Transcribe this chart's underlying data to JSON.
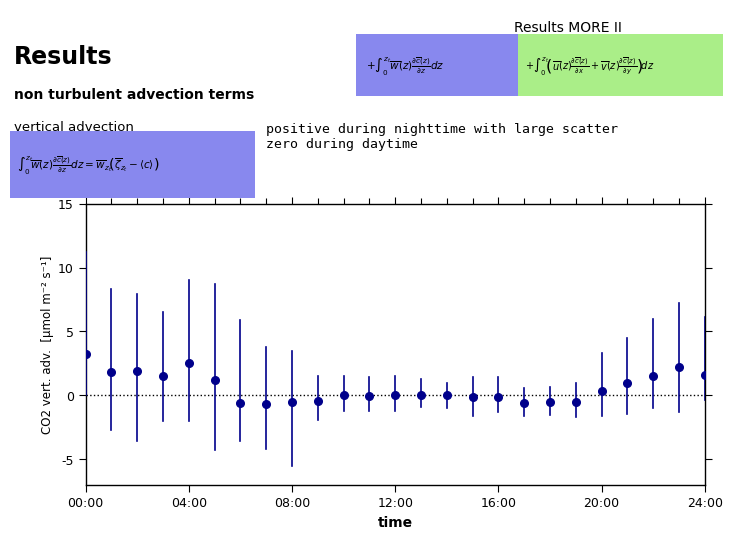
{
  "title_slide": "Results MORE II",
  "title_main": "Results",
  "subtitle": "non turbulent advection terms",
  "subtitle2": "vertical advection",
  "annotation": "positive during nighttime with large scatter\nzero during daytime",
  "xlabel": "time",
  "ylabel": "CO2 vert. adv.  [μmol m⁻² s⁻¹]",
  "ylim": [
    -7,
    15
  ],
  "yticks": [
    -5,
    0,
    5,
    10,
    15
  ],
  "x_hours": [
    0,
    1,
    2,
    3,
    4,
    5,
    6,
    7,
    8,
    9,
    10,
    11,
    12,
    13,
    14,
    15,
    16,
    17,
    18,
    19,
    20,
    21,
    22,
    23,
    24
  ],
  "y_values": [
    3.2,
    1.8,
    1.9,
    1.5,
    2.5,
    1.2,
    -0.6,
    -0.7,
    -0.55,
    -0.45,
    0.0,
    -0.05,
    0.0,
    0.05,
    0.0,
    -0.1,
    -0.1,
    -0.6,
    -0.55,
    -0.5,
    0.35,
    1.0,
    1.5,
    2.2,
    1.6
  ],
  "y_err_low": [
    3.2,
    4.5,
    5.5,
    3.5,
    4.5,
    5.5,
    3.0,
    3.5,
    5.0,
    1.5,
    1.2,
    1.2,
    1.2,
    1.0,
    1.0,
    1.5,
    1.2,
    1.0,
    1.0,
    1.2,
    2.0,
    2.5,
    2.5,
    3.5,
    2.0
  ],
  "y_err_high": [
    8.0,
    6.5,
    6.0,
    5.0,
    6.5,
    7.5,
    6.5,
    4.5,
    4.0,
    2.0,
    1.5,
    1.5,
    1.5,
    1.2,
    1.0,
    1.5,
    1.5,
    1.2,
    1.2,
    1.5,
    3.0,
    3.5,
    4.5,
    5.0,
    4.5
  ],
  "dot_color": "#00008B",
  "line_color": "#00008B",
  "bg_color": "#ffffff",
  "plot_bg": "#ffffff",
  "header_bg": "#d3d3d3",
  "formula_bg_blue": "#8888ee",
  "formula_bg_green": "#aaee88",
  "xtick_labels": [
    "00:00",
    "04:00",
    "08:00",
    "12:00",
    "16:00",
    "20:00",
    "24:00"
  ],
  "xtick_positions": [
    0,
    4,
    8,
    12,
    16,
    20,
    24
  ]
}
